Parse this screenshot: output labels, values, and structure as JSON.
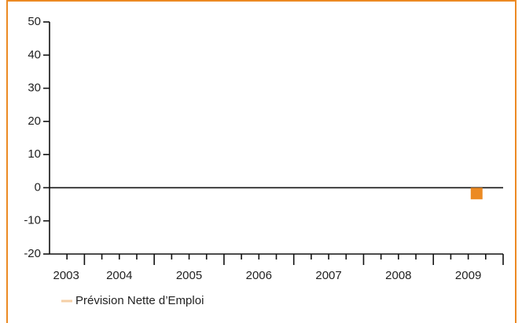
{
  "chart_data": {
    "type": "bar",
    "categories": [
      "2003",
      "2004",
      "2005",
      "2006",
      "2007",
      "2008",
      "2009"
    ],
    "series": [
      {
        "name": "Prévision Nette d’Emploi",
        "color": "#ec8a23",
        "legend_color": "#f5cfa6",
        "values": [
          null,
          null,
          null,
          null,
          null,
          null,
          -3.5
        ]
      }
    ],
    "ylim": [
      -20,
      50
    ],
    "yticks": [
      -20,
      -10,
      0,
      10,
      20,
      30,
      40,
      50
    ],
    "grid": false
  }
}
